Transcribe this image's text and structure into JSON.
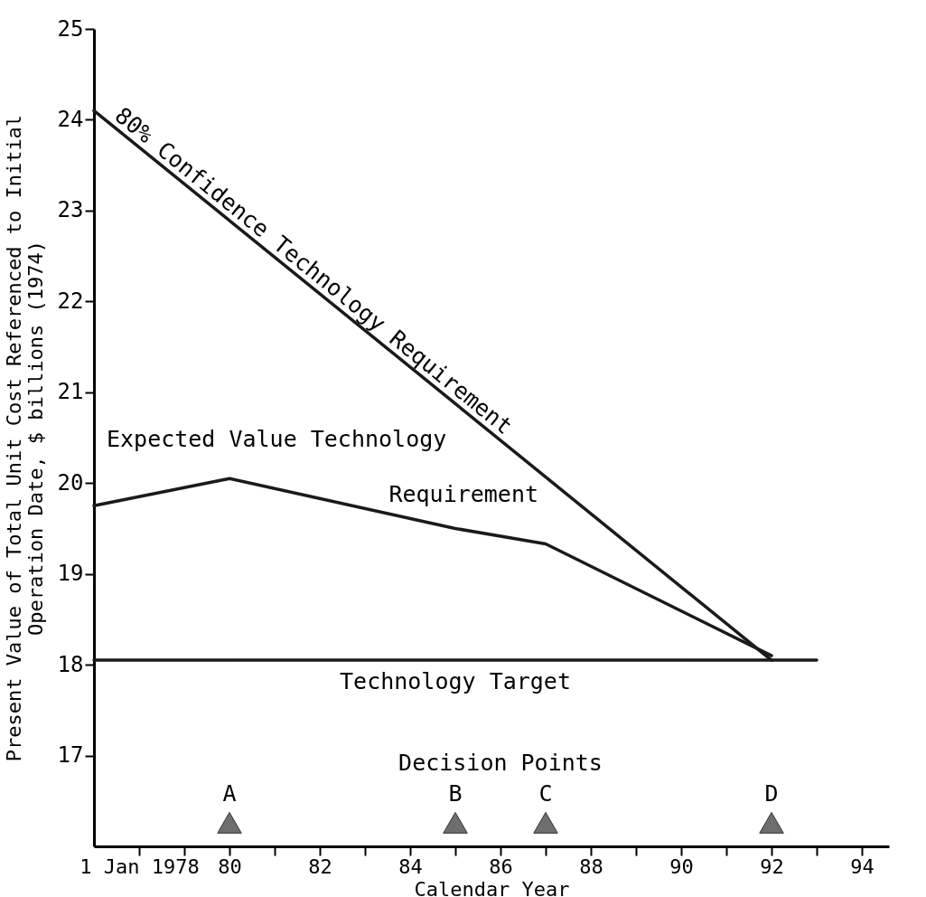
{
  "chart_data": {
    "type": "line",
    "xlabel": "Calendar Year",
    "ylabel": "Present Value of Total Unit Cost Referenced to Initial\nOperation Date, $ billions (1974)",
    "xlim": [
      1977,
      1994.6
    ],
    "ylim": [
      16,
      25
    ],
    "xticks": [
      {
        "value": 1978,
        "label": "1 Jan 1978"
      },
      {
        "value": 1979,
        "label": null
      },
      {
        "value": 1980,
        "label": "80"
      },
      {
        "value": 1981,
        "label": null
      },
      {
        "value": 1982,
        "label": "82"
      },
      {
        "value": 1983,
        "label": null
      },
      {
        "value": 1984,
        "label": "84"
      },
      {
        "value": 1985,
        "label": null
      },
      {
        "value": 1986,
        "label": "86"
      },
      {
        "value": 1987,
        "label": null
      },
      {
        "value": 1988,
        "label": "88"
      },
      {
        "value": 1989,
        "label": null
      },
      {
        "value": 1990,
        "label": "90"
      },
      {
        "value": 1991,
        "label": null
      },
      {
        "value": 1992,
        "label": "92"
      },
      {
        "value": 1993,
        "label": null
      },
      {
        "value": 1994,
        "label": "94"
      }
    ],
    "yticks": [
      17,
      18,
      19,
      20,
      21,
      22,
      23,
      24,
      25
    ],
    "grid": false,
    "series": [
      {
        "name": "80% Confidence Technology Requirement",
        "type": "line",
        "color": "#1a1a1a",
        "x": [
          1977,
          1992
        ],
        "values": [
          24.1,
          18.05
        ]
      },
      {
        "name": "Expected Value Technology Requirement",
        "type": "line",
        "color": "#1a1a1a",
        "x": [
          1977,
          1980,
          1985,
          1987,
          1992
        ],
        "values": [
          19.75,
          20.05,
          19.5,
          19.33,
          18.1
        ]
      },
      {
        "name": "Technology Target",
        "type": "line",
        "color": "#1a1a1a",
        "x": [
          1977,
          1993
        ],
        "values": [
          18.05,
          18.05
        ]
      },
      {
        "type": "scatter",
        "marker": "triangle",
        "color": "#6e6e6e",
        "x": [
          1980,
          1985,
          1987,
          1992
        ],
        "values": [
          16.26,
          16.26,
          16.26,
          16.26
        ]
      }
    ],
    "annotations": [
      "Decision Points",
      "A",
      "B",
      "C",
      "D"
    ]
  }
}
